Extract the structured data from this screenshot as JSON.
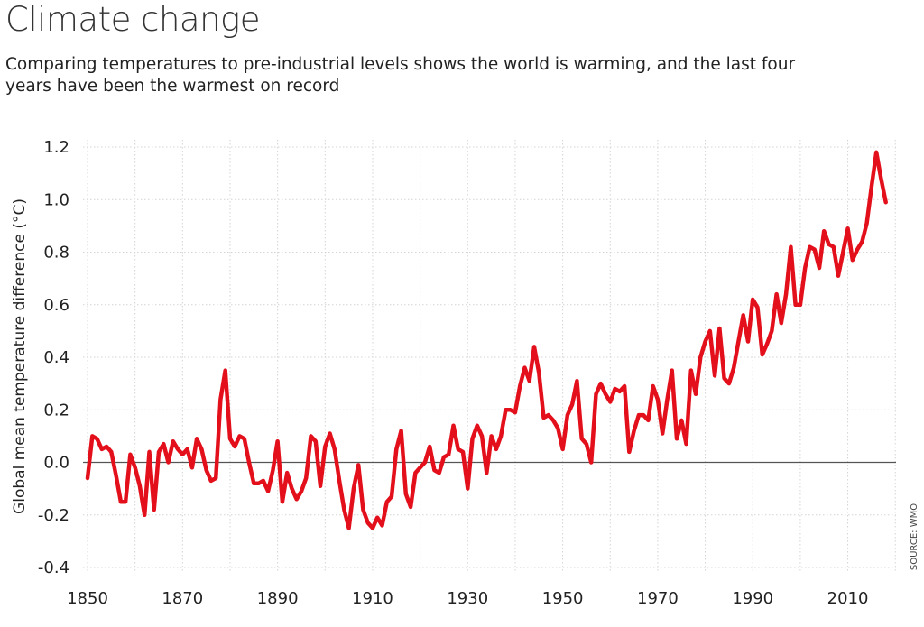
{
  "header": {
    "title": "Climate change",
    "subtitle": "Comparing temperatures to pre-industrial levels shows the world is warming, and the last four years have been the warmest on record"
  },
  "source": "SOURCE: WMO",
  "colors": {
    "line": "#e3101c",
    "grid": "#d4d4d4",
    "zero_line": "#555555"
  },
  "chart_data": {
    "type": "line",
    "ylabel": "Global mean temperature difference (°C)",
    "xlabel": "",
    "xlim": [
      1850,
      2020
    ],
    "ylim": [
      -0.4,
      1.2
    ],
    "x_ticks": [
      1850,
      1870,
      1890,
      1910,
      1930,
      1950,
      1970,
      1990,
      2010
    ],
    "y_ticks": [
      -0.4,
      -0.2,
      0.0,
      0.2,
      0.4,
      0.6,
      0.8,
      1.0,
      1.2
    ],
    "y_tick_labels": [
      "-0.4",
      "-0.2",
      "0.0",
      "0.2",
      "0.4",
      "0.6",
      "0.8",
      "1.0",
      "1.2"
    ],
    "grid": true,
    "series": [
      {
        "name": "",
        "x": [
          1850,
          1851,
          1852,
          1853,
          1854,
          1855,
          1856,
          1857,
          1858,
          1859,
          1860,
          1861,
          1862,
          1863,
          1864,
          1865,
          1866,
          1867,
          1868,
          1869,
          1870,
          1871,
          1872,
          1873,
          1874,
          1875,
          1876,
          1877,
          1878,
          1879,
          1880,
          1881,
          1882,
          1883,
          1884,
          1885,
          1886,
          1887,
          1888,
          1889,
          1890,
          1891,
          1892,
          1893,
          1894,
          1895,
          1896,
          1897,
          1898,
          1899,
          1900,
          1901,
          1902,
          1903,
          1904,
          1905,
          1906,
          1907,
          1908,
          1909,
          1910,
          1911,
          1912,
          1913,
          1914,
          1915,
          1916,
          1917,
          1918,
          1919,
          1920,
          1921,
          1922,
          1923,
          1924,
          1925,
          1926,
          1927,
          1928,
          1929,
          1930,
          1931,
          1932,
          1933,
          1934,
          1935,
          1936,
          1937,
          1938,
          1939,
          1940,
          1941,
          1942,
          1943,
          1944,
          1945,
          1946,
          1947,
          1948,
          1949,
          1950,
          1951,
          1952,
          1953,
          1954,
          1955,
          1956,
          1957,
          1958,
          1959,
          1960,
          1961,
          1962,
          1963,
          1964,
          1965,
          1966,
          1967,
          1968,
          1969,
          1970,
          1971,
          1972,
          1973,
          1974,
          1975,
          1976,
          1977,
          1978,
          1979,
          1980,
          1981,
          1982,
          1983,
          1984,
          1985,
          1986,
          1987,
          1988,
          1989,
          1990,
          1991,
          1992,
          1993,
          1994,
          1995,
          1996,
          1997,
          1998,
          1999,
          2000,
          2001,
          2002,
          2003,
          2004,
          2005,
          2006,
          2007,
          2008,
          2009,
          2010,
          2011,
          2012,
          2013,
          2014,
          2015,
          2016,
          2017,
          2018
        ],
        "values": [
          -0.06,
          0.1,
          0.09,
          0.05,
          0.06,
          0.04,
          -0.05,
          -0.15,
          -0.15,
          0.03,
          -0.02,
          -0.09,
          -0.2,
          0.04,
          -0.18,
          0.04,
          0.07,
          0.0,
          0.08,
          0.05,
          0.03,
          0.05,
          -0.02,
          0.09,
          0.05,
          -0.03,
          -0.07,
          -0.06,
          0.24,
          0.35,
          0.09,
          0.06,
          0.1,
          0.09,
          0.0,
          -0.08,
          -0.08,
          -0.07,
          -0.11,
          -0.03,
          0.08,
          -0.15,
          -0.04,
          -0.1,
          -0.14,
          -0.11,
          -0.06,
          0.1,
          0.08,
          -0.09,
          0.06,
          0.11,
          0.05,
          -0.07,
          -0.18,
          -0.25,
          -0.1,
          -0.01,
          -0.18,
          -0.23,
          -0.25,
          -0.21,
          -0.24,
          -0.15,
          -0.13,
          0.05,
          0.12,
          -0.12,
          -0.17,
          -0.04,
          -0.02,
          0.0,
          0.06,
          -0.03,
          -0.04,
          0.02,
          0.03,
          0.14,
          0.05,
          0.04,
          -0.1,
          0.09,
          0.14,
          0.1,
          -0.04,
          0.1,
          0.05,
          0.1,
          0.2,
          0.2,
          0.19,
          0.29,
          0.36,
          0.31,
          0.44,
          0.34,
          0.17,
          0.18,
          0.16,
          0.13,
          0.05,
          0.18,
          0.22,
          0.31,
          0.09,
          0.07,
          0.0,
          0.26,
          0.3,
          0.26,
          0.23,
          0.28,
          0.27,
          0.29,
          0.04,
          0.12,
          0.18,
          0.18,
          0.16,
          0.29,
          0.24,
          0.11,
          0.24,
          0.35,
          0.09,
          0.16,
          0.07,
          0.35,
          0.26,
          0.4,
          0.46,
          0.5,
          0.33,
          0.51,
          0.32,
          0.3,
          0.36,
          0.46,
          0.56,
          0.46,
          0.62,
          0.59,
          0.41,
          0.45,
          0.5,
          0.64,
          0.53,
          0.64,
          0.82,
          0.6,
          0.6,
          0.74,
          0.82,
          0.81,
          0.74,
          0.88,
          0.83,
          0.82,
          0.71,
          0.8,
          0.89,
          0.77,
          0.81,
          0.84,
          0.91,
          1.05,
          1.18,
          1.08,
          0.99
        ]
      }
    ]
  }
}
